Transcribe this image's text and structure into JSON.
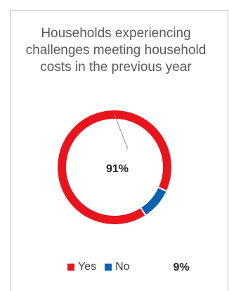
{
  "chart_data": {
    "type": "pie",
    "variant": "donut",
    "title": "Households experiencing challenges meeting household costs in the previous year",
    "categories": [
      "Yes",
      "No"
    ],
    "values": [
      91,
      9
    ],
    "data_labels": [
      "91%",
      "9%"
    ],
    "colors": [
      "#e8151f",
      "#0c62b2"
    ],
    "legend_position": "bottom"
  }
}
